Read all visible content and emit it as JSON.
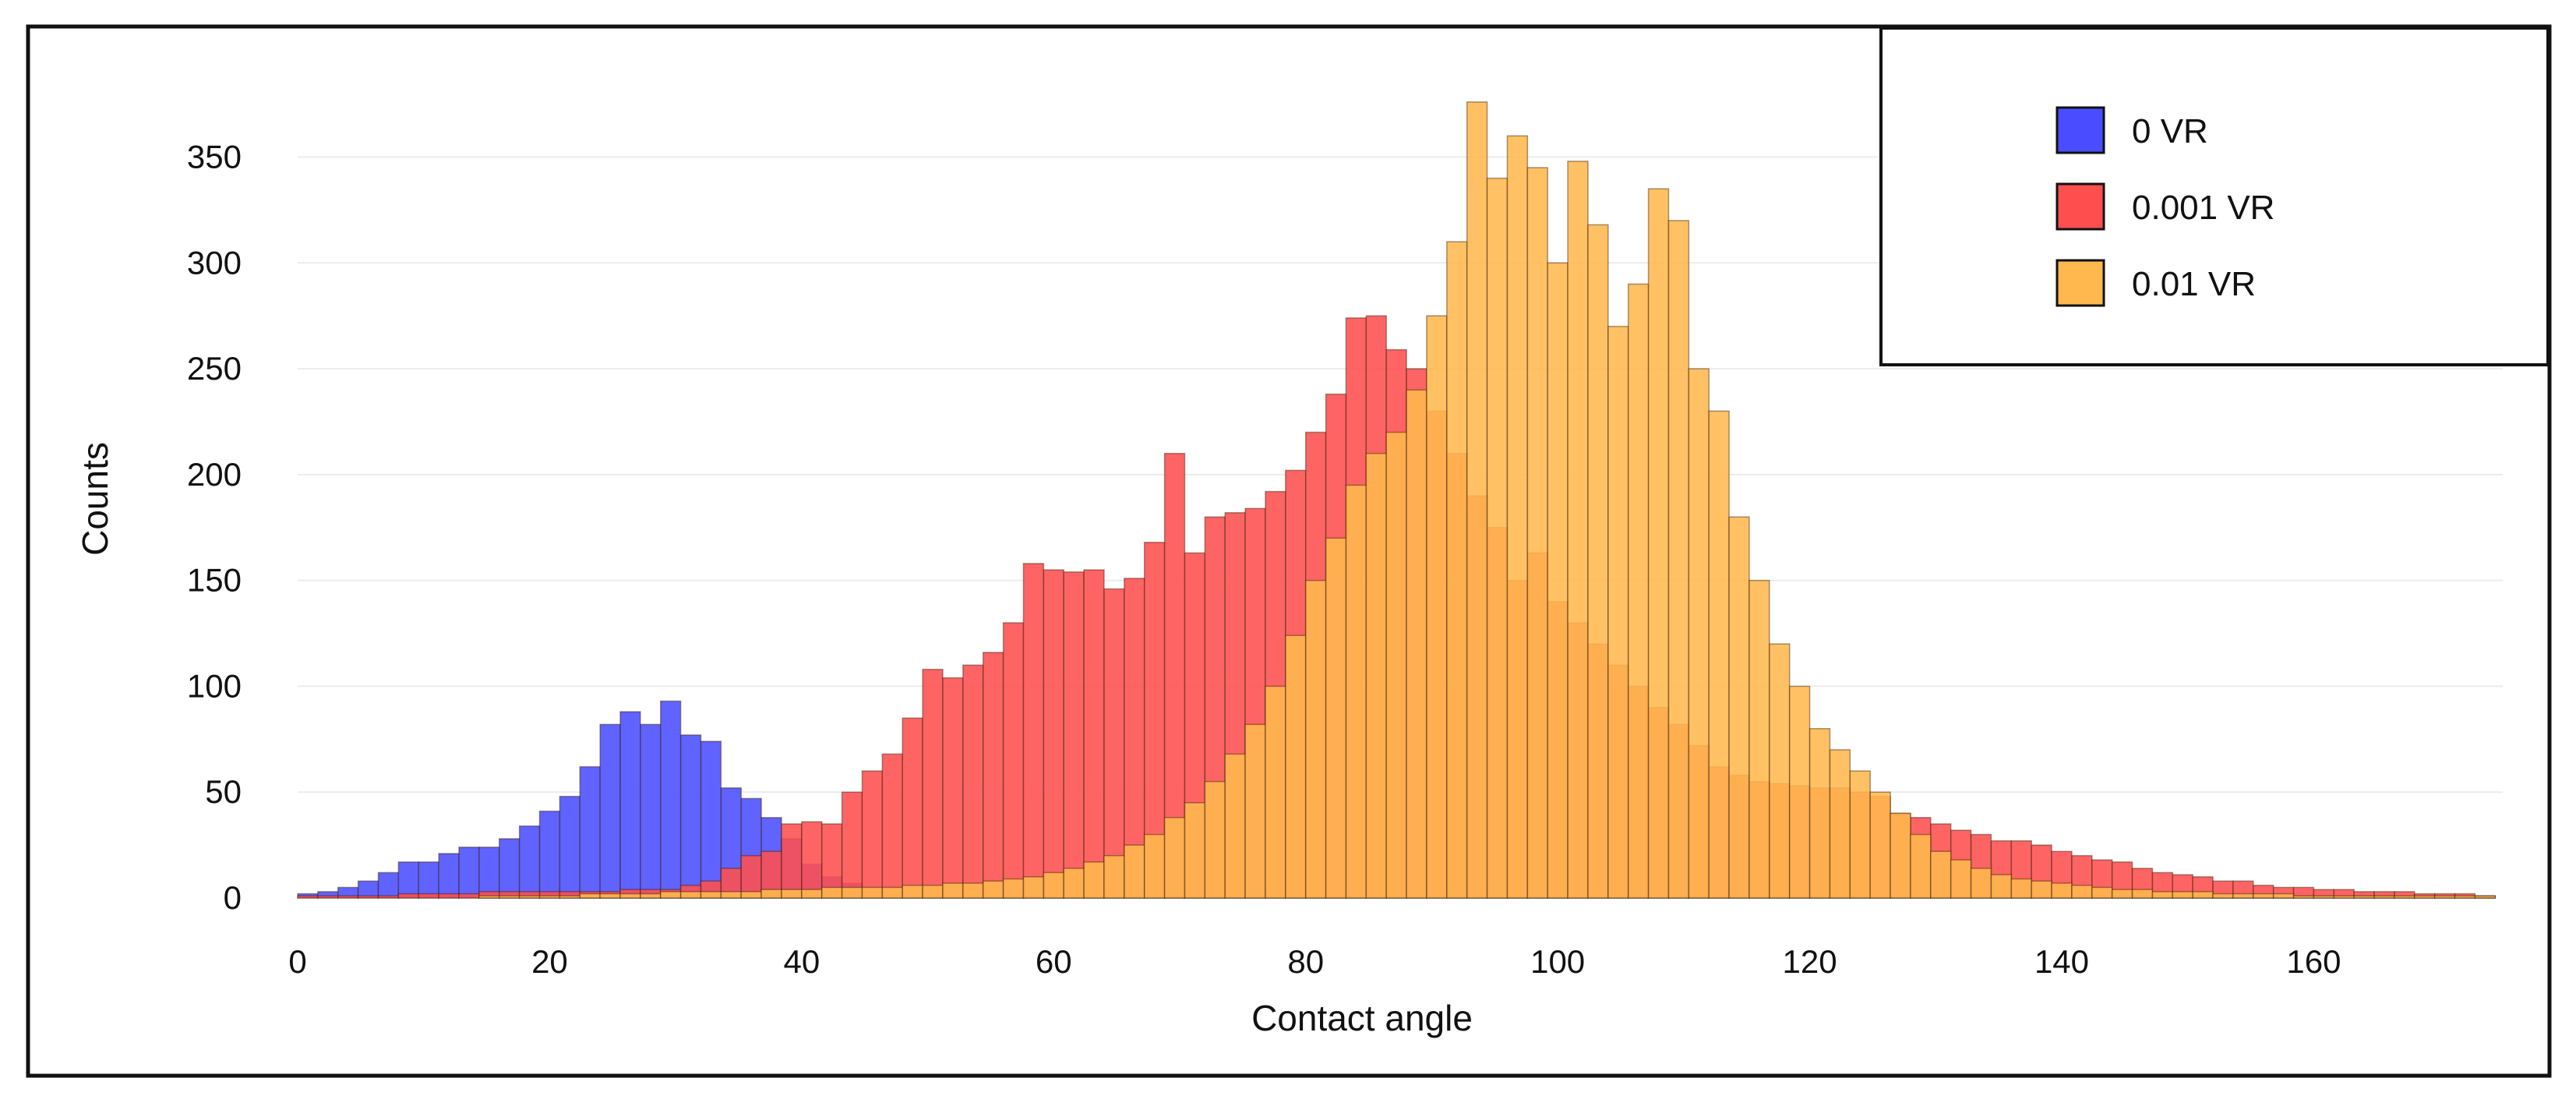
{
  "chart_data": {
    "type": "bar",
    "title": "",
    "xlabel": "Contact angle",
    "ylabel": "Counts",
    "xlim": [
      0,
      175
    ],
    "ylim": [
      0,
      380
    ],
    "xticks": [
      0,
      20,
      40,
      60,
      80,
      100,
      120,
      140,
      160
    ],
    "yticks": [
      0,
      50,
      100,
      150,
      200,
      250,
      300,
      350
    ],
    "grid": true,
    "legend_position": "top-right",
    "bin_width": 1.6,
    "x_start": 0.8,
    "series": [
      {
        "name": "0 VR",
        "color": "#4a4dff",
        "values": [
          2,
          3,
          5,
          8,
          12,
          17,
          17,
          21,
          24,
          24,
          28,
          34,
          41,
          48,
          62,
          82,
          88,
          82,
          93,
          77,
          74,
          52,
          47,
          38,
          28,
          16,
          10,
          7,
          4,
          2,
          1,
          1,
          1,
          1,
          1,
          1,
          1,
          1,
          1,
          1,
          1,
          1,
          1,
          1,
          1,
          1,
          1,
          1,
          1,
          1,
          1,
          1,
          1,
          1,
          1,
          1,
          1,
          1,
          1,
          1,
          1,
          1,
          1,
          1,
          1,
          1,
          1,
          1,
          1,
          1,
          1,
          1,
          1,
          1,
          1,
          1,
          1,
          1,
          1,
          1,
          1,
          1,
          1,
          1,
          1,
          1,
          1,
          1,
          1,
          1,
          1,
          1,
          1,
          1,
          1,
          1,
          1,
          1,
          1,
          1,
          1,
          1,
          1,
          1,
          1,
          1,
          1,
          1,
          1
        ]
      },
      {
        "name": "0.001 VR",
        "color": "#ff4e4e",
        "values": [
          1,
          1,
          1,
          1,
          1,
          2,
          2,
          2,
          2,
          3,
          3,
          3,
          3,
          3,
          3,
          3,
          4,
          4,
          4,
          6,
          8,
          14,
          20,
          22,
          35,
          36,
          35,
          50,
          60,
          68,
          85,
          108,
          104,
          110,
          116,
          130,
          158,
          155,
          154,
          155,
          146,
          151,
          168,
          210,
          163,
          180,
          182,
          184,
          192,
          202,
          220,
          238,
          274,
          275,
          259,
          250,
          230,
          210,
          190,
          175,
          150,
          163,
          140,
          130,
          120,
          110,
          100,
          90,
          82,
          72,
          62,
          58,
          55,
          54,
          53,
          52,
          52,
          50,
          48,
          40,
          38,
          35,
          32,
          30,
          27,
          27,
          25,
          22,
          20,
          18,
          17,
          14,
          12,
          11,
          10,
          8,
          8,
          6,
          5,
          5,
          4,
          4,
          3,
          3,
          3,
          2,
          2,
          2,
          1
        ]
      },
      {
        "name": "0.01 VR",
        "color": "#ffb84d",
        "values": [
          0,
          0,
          0,
          0,
          0,
          0,
          0,
          0,
          0,
          1,
          1,
          1,
          1,
          1,
          2,
          2,
          2,
          2,
          3,
          3,
          3,
          3,
          3,
          4,
          4,
          4,
          5,
          5,
          5,
          5,
          6,
          6,
          7,
          7,
          8,
          9,
          10,
          12,
          14,
          17,
          20,
          25,
          30,
          38,
          45,
          55,
          68,
          82,
          100,
          124,
          150,
          170,
          195,
          210,
          220,
          240,
          275,
          310,
          376,
          340,
          360,
          345,
          300,
          348,
          318,
          270,
          290,
          335,
          320,
          250,
          230,
          180,
          150,
          120,
          100,
          80,
          70,
          60,
          50,
          40,
          30,
          22,
          18,
          14,
          11,
          9,
          8,
          7,
          6,
          5,
          4,
          4,
          3,
          3,
          3,
          2,
          2,
          2,
          2,
          1,
          1,
          1,
          1,
          1,
          1,
          1,
          1,
          1,
          1
        ]
      }
    ]
  }
}
